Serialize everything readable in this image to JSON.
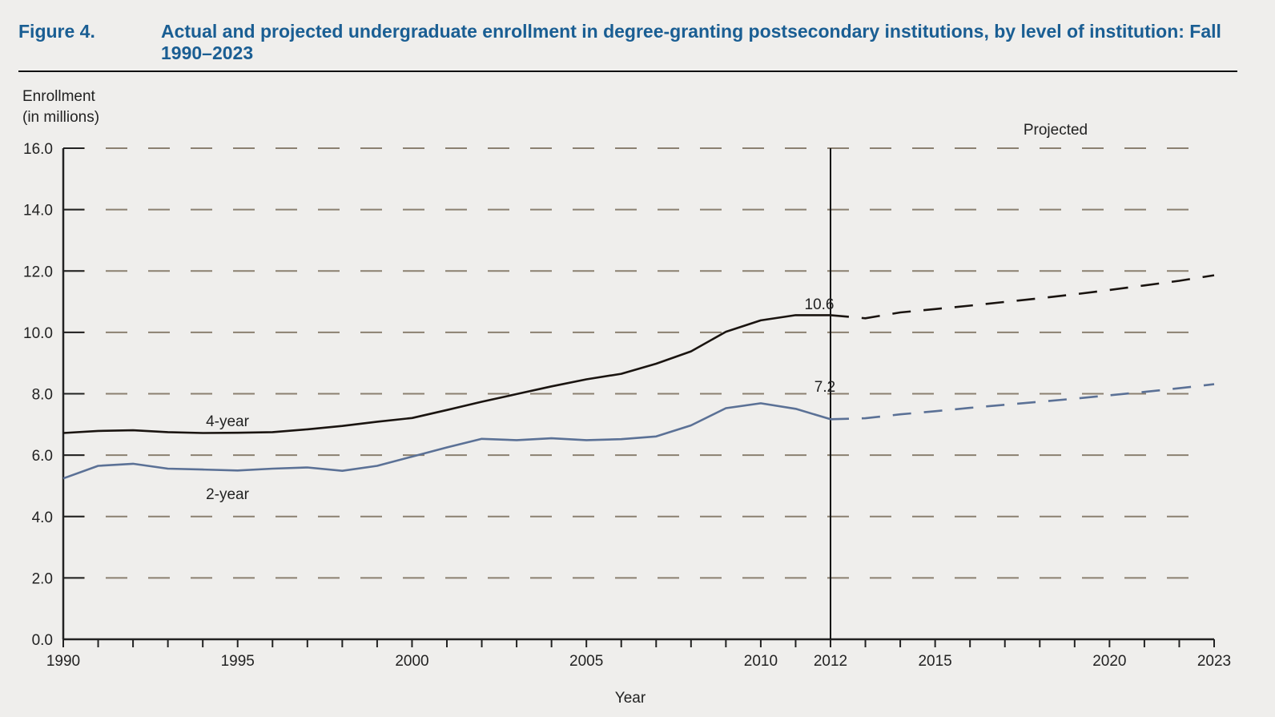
{
  "figure": {
    "label": "Figure 4.",
    "title": "Actual and projected undergraduate enrollment in degree-granting postsecondary institutions, by level of institution: Fall 1990–2023"
  },
  "chart_data": {
    "type": "line",
    "ylabel_line1": "Enrollment",
    "ylabel_line2": "(in millions)",
    "xlabel": "Year",
    "ylim": [
      0,
      16
    ],
    "yticks": [
      "0.0",
      "2.0",
      "4.0",
      "6.0",
      "8.0",
      "10.0",
      "12.0",
      "14.0",
      "16.0"
    ],
    "xlim": [
      1990,
      2023
    ],
    "xtick_labels": [
      1990,
      1995,
      2000,
      2005,
      2010,
      2012,
      2015,
      2020,
      2023
    ],
    "grid": "horizontal dashed",
    "projection_start": 2012,
    "projection_label": "Projected",
    "series": [
      {
        "name": "4-year",
        "color": "#1a1410",
        "label_text": "4-year",
        "actual": [
          [
            1990,
            6.72
          ],
          [
            1991,
            6.79
          ],
          [
            1992,
            6.81
          ],
          [
            1993,
            6.75
          ],
          [
            1994,
            6.72
          ],
          [
            1995,
            6.73
          ],
          [
            1996,
            6.75
          ],
          [
            1997,
            6.84
          ],
          [
            1998,
            6.95
          ],
          [
            1999,
            7.09
          ],
          [
            2000,
            7.21
          ],
          [
            2001,
            7.47
          ],
          [
            2002,
            7.74
          ],
          [
            2003,
            7.99
          ],
          [
            2004,
            8.24
          ],
          [
            2005,
            8.47
          ],
          [
            2006,
            8.65
          ],
          [
            2007,
            8.98
          ],
          [
            2008,
            9.38
          ],
          [
            2009,
            10.02
          ],
          [
            2010,
            10.39
          ],
          [
            2011,
            10.56
          ],
          [
            2012,
            10.56
          ]
        ],
        "projected": [
          [
            2012,
            10.56
          ],
          [
            2013,
            10.46
          ],
          [
            2014,
            10.65
          ],
          [
            2015,
            10.76
          ],
          [
            2016,
            10.87
          ],
          [
            2017,
            10.99
          ],
          [
            2018,
            11.11
          ],
          [
            2019,
            11.24
          ],
          [
            2020,
            11.38
          ],
          [
            2021,
            11.53
          ],
          [
            2022,
            11.68
          ],
          [
            2023,
            11.86
          ]
        ],
        "end_label": "10.6"
      },
      {
        "name": "2-year",
        "color": "#5b7196",
        "label_text": "2-year",
        "actual": [
          [
            1990,
            5.24
          ],
          [
            1991,
            5.65
          ],
          [
            1992,
            5.72
          ],
          [
            1993,
            5.56
          ],
          [
            1994,
            5.53
          ],
          [
            1995,
            5.5
          ],
          [
            1996,
            5.56
          ],
          [
            1997,
            5.6
          ],
          [
            1998,
            5.49
          ],
          [
            1999,
            5.65
          ],
          [
            2000,
            5.95
          ],
          [
            2001,
            6.25
          ],
          [
            2002,
            6.53
          ],
          [
            2003,
            6.49
          ],
          [
            2004,
            6.55
          ],
          [
            2005,
            6.49
          ],
          [
            2006,
            6.52
          ],
          [
            2007,
            6.61
          ],
          [
            2008,
            6.97
          ],
          [
            2009,
            7.53
          ],
          [
            2010,
            7.69
          ],
          [
            2011,
            7.51
          ],
          [
            2012,
            7.17
          ]
        ],
        "projected": [
          [
            2012,
            7.17
          ],
          [
            2013,
            7.2
          ],
          [
            2014,
            7.33
          ],
          [
            2015,
            7.43
          ],
          [
            2016,
            7.54
          ],
          [
            2017,
            7.64
          ],
          [
            2018,
            7.74
          ],
          [
            2019,
            7.84
          ],
          [
            2020,
            7.95
          ],
          [
            2021,
            8.06
          ],
          [
            2022,
            8.18
          ],
          [
            2023,
            8.31
          ]
        ],
        "end_label": "7.2"
      }
    ]
  }
}
